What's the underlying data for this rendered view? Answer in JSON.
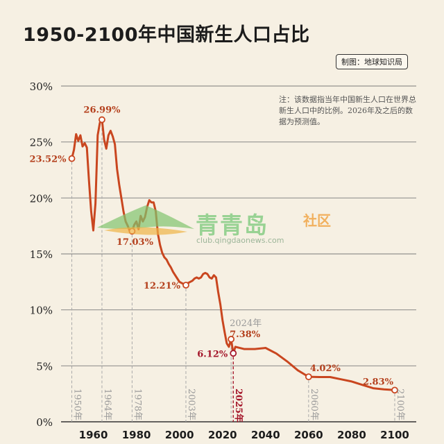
{
  "page": {
    "title": "1950-2100年中国新生人口占比",
    "credit": "制图：地球知识局",
    "note": "注：该数据指当年中国新生人口在世界总新生人口中的比例。2026年及之后的数据为预测值。",
    "watermark": {
      "brand": "青青岛",
      "sub": "社区",
      "url": "club.qingdaonews.com"
    }
  },
  "colors": {
    "background": "#f6f0e3",
    "line": "#c9461f",
    "grid": "#7a7a7a",
    "label": "#b4401d",
    "gray_label": "#9a9a9a",
    "highlight": "#a4162a"
  },
  "chart_data": {
    "type": "line",
    "title": "1950-2100年中国新生人口占比",
    "xlabel": "",
    "ylabel": "",
    "xlim": [
      1945,
      2110
    ],
    "ylim": [
      0,
      30
    ],
    "grid": true,
    "x_ticks": [
      1960,
      1980,
      2000,
      2020,
      2040,
      2060,
      2080,
      2100
    ],
    "y_ticks": [
      {
        "value": 0,
        "label": "0%"
      },
      {
        "value": 5,
        "label": "5%"
      },
      {
        "value": 10,
        "label": "10%"
      },
      {
        "value": 15,
        "label": "15%"
      },
      {
        "value": 20,
        "label": "20%"
      },
      {
        "value": 25,
        "label": "25%"
      },
      {
        "value": 30,
        "label": "30%"
      }
    ],
    "series": [
      {
        "points": [
          [
            1950,
            23.52
          ],
          [
            1951,
            24.3
          ],
          [
            1952,
            25.7
          ],
          [
            1953,
            25.1
          ],
          [
            1954,
            25.6
          ],
          [
            1955,
            24.6
          ],
          [
            1956,
            24.9
          ],
          [
            1957,
            24.5
          ],
          [
            1958,
            21.5
          ],
          [
            1959,
            18.8
          ],
          [
            1960,
            17.1
          ],
          [
            1961,
            19.5
          ],
          [
            1962,
            25.6
          ],
          [
            1963,
            26.7
          ],
          [
            1964,
            26.99
          ],
          [
            1965,
            25.2
          ],
          [
            1966,
            24.4
          ],
          [
            1967,
            25.6
          ],
          [
            1968,
            26.0
          ],
          [
            1969,
            25.5
          ],
          [
            1970,
            24.8
          ],
          [
            1971,
            22.6
          ],
          [
            1972,
            21.2
          ],
          [
            1973,
            20.0
          ],
          [
            1974,
            18.8
          ],
          [
            1975,
            17.9
          ],
          [
            1976,
            17.5
          ],
          [
            1977,
            17.0
          ],
          [
            1978,
            17.03
          ],
          [
            1979,
            17.6
          ],
          [
            1980,
            17.9
          ],
          [
            1981,
            17.2
          ],
          [
            1982,
            18.4
          ],
          [
            1983,
            17.9
          ],
          [
            1984,
            18.3
          ],
          [
            1985,
            19.2
          ],
          [
            1986,
            19.8
          ],
          [
            1987,
            19.6
          ],
          [
            1988,
            19.6
          ],
          [
            1989,
            18.8
          ],
          [
            1990,
            16.8
          ],
          [
            1991,
            15.8
          ],
          [
            1992,
            15.1
          ],
          [
            1993,
            14.7
          ],
          [
            1994,
            14.5
          ],
          [
            1995,
            14.1
          ],
          [
            1996,
            13.8
          ],
          [
            1997,
            13.4
          ],
          [
            1998,
            13.1
          ],
          [
            1999,
            12.8
          ],
          [
            2000,
            12.5
          ],
          [
            2001,
            12.4
          ],
          [
            2002,
            12.3
          ],
          [
            2003,
            12.21
          ],
          [
            2004,
            12.4
          ],
          [
            2005,
            12.5
          ],
          [
            2006,
            12.6
          ],
          [
            2007,
            12.8
          ],
          [
            2008,
            12.9
          ],
          [
            2009,
            12.8
          ],
          [
            2010,
            12.9
          ],
          [
            2011,
            13.2
          ],
          [
            2012,
            13.3
          ],
          [
            2013,
            13.2
          ],
          [
            2014,
            12.9
          ],
          [
            2015,
            12.8
          ],
          [
            2016,
            13.1
          ],
          [
            2017,
            12.9
          ],
          [
            2018,
            11.6
          ],
          [
            2019,
            10.5
          ],
          [
            2020,
            9.1
          ],
          [
            2021,
            8.0
          ],
          [
            2022,
            7.0
          ],
          [
            2023,
            6.7
          ],
          [
            2024,
            7.38
          ],
          [
            2025,
            6.12
          ],
          [
            2026,
            6.7
          ],
          [
            2030,
            6.5
          ],
          [
            2035,
            6.5
          ],
          [
            2040,
            6.6
          ],
          [
            2045,
            6.1
          ],
          [
            2050,
            5.4
          ],
          [
            2055,
            4.6
          ],
          [
            2060,
            4.02
          ],
          [
            2065,
            4.0
          ],
          [
            2070,
            4.0
          ],
          [
            2075,
            3.8
          ],
          [
            2080,
            3.6
          ],
          [
            2085,
            3.3
          ],
          [
            2090,
            3.0
          ],
          [
            2095,
            2.9
          ],
          [
            2100,
            2.83
          ]
        ]
      }
    ],
    "annotations": [
      {
        "x": 1950,
        "y": 23.52,
        "value_label": "23.52%",
        "year_label": "1950年",
        "side": "left",
        "style": "normal"
      },
      {
        "x": 1964,
        "y": 26.99,
        "value_label": "26.99%",
        "year_label": "1964年",
        "side": "above",
        "style": "normal"
      },
      {
        "x": 1978,
        "y": 17.03,
        "value_label": "17.03%",
        "year_label": "1978年",
        "side": "below-left",
        "style": "normal"
      },
      {
        "x": 2003,
        "y": 12.21,
        "value_label": "12.21%",
        "year_label": "2003年",
        "side": "left",
        "style": "normal"
      },
      {
        "x": 2024,
        "y": 7.38,
        "value_label": "7.38%",
        "year_label": "2024年",
        "side": "above-right",
        "style": "year-above"
      },
      {
        "x": 2025,
        "y": 6.12,
        "value_label": "6.12%",
        "year_label": "2025年",
        "side": "left",
        "style": "highlight"
      },
      {
        "x": 2060,
        "y": 4.02,
        "value_label": "4.02%",
        "year_label": "2060年",
        "side": "above-right",
        "style": "normal"
      },
      {
        "x": 2100,
        "y": 2.83,
        "value_label": "2.83%",
        "year_label": "2100年",
        "side": "above-left",
        "style": "normal"
      }
    ]
  }
}
